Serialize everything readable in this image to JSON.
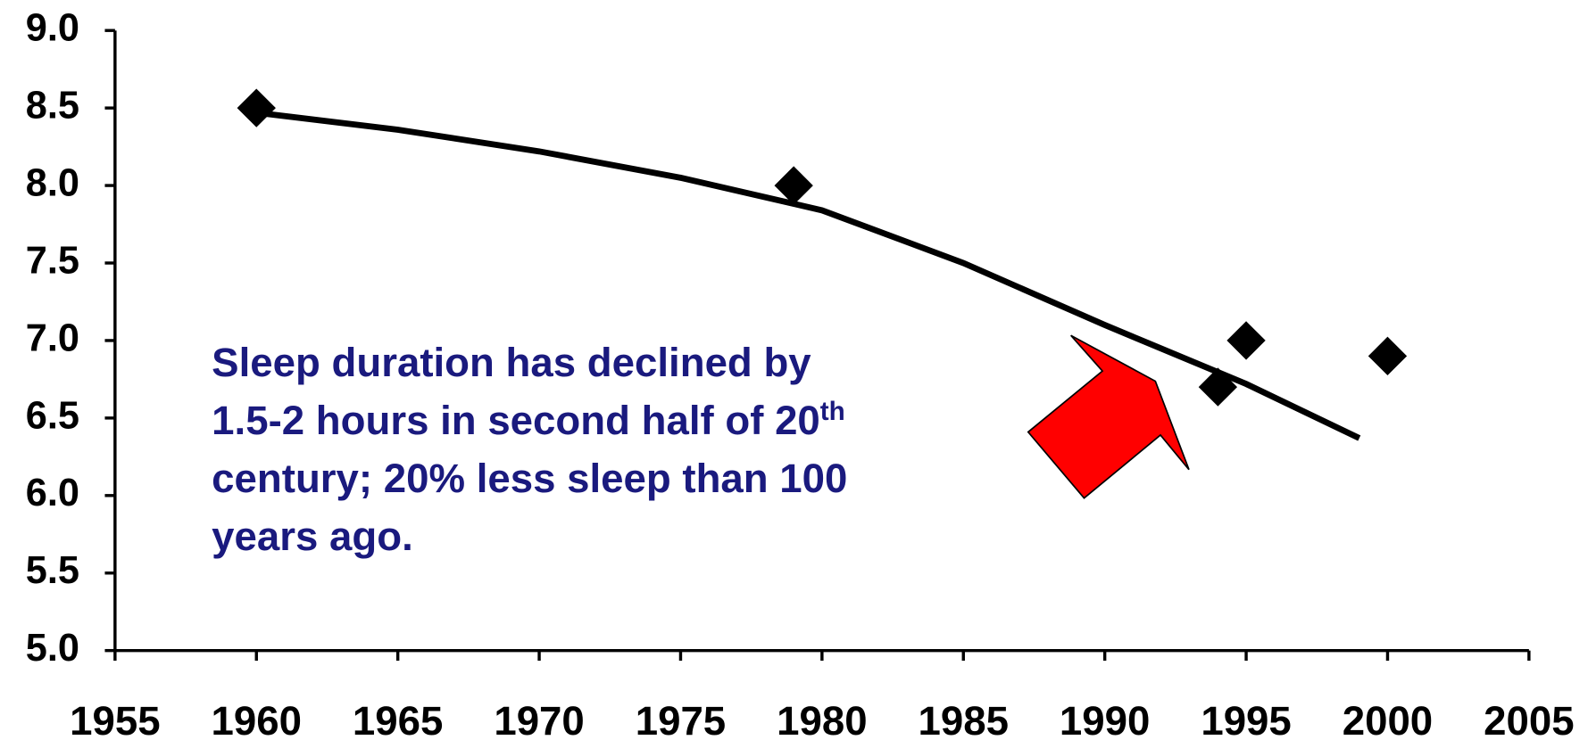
{
  "chart_data": {
    "type": "scatter",
    "x": [
      1960,
      1979,
      1994,
      1995,
      2000
    ],
    "values": [
      8.5,
      8.0,
      6.7,
      7.0,
      6.9
    ],
    "color": "#000000",
    "trendline": {
      "x": [
        1960,
        1965,
        1970,
        1975,
        1980,
        1985,
        1990,
        1995,
        1999
      ],
      "values": [
        8.47,
        8.36,
        8.22,
        8.05,
        7.84,
        7.5,
        7.1,
        6.72,
        6.37
      ],
      "color": "#000000"
    },
    "xlim": [
      1955,
      2005
    ],
    "xticks": [
      1955,
      1960,
      1965,
      1970,
      1975,
      1980,
      1985,
      1990,
      1995,
      2000,
      2005
    ],
    "ylim": [
      5,
      9
    ],
    "yticks": [
      {
        "value": 5,
        "label": "5.0"
      },
      {
        "value": 5.5,
        "label": "5.5"
      },
      {
        "value": 6,
        "label": "6.0"
      },
      {
        "value": 6.5,
        "label": "6.5"
      },
      {
        "value": 7,
        "label": "7.0"
      },
      {
        "value": 7.5,
        "label": "7.5"
      },
      {
        "value": 8,
        "label": "8.0"
      },
      {
        "value": 8.5,
        "label": "8.5"
      },
      {
        "value": 9,
        "label": "9.0"
      }
    ],
    "annotation": {
      "lines": [
        "Sleep duration has declined by",
        "1.5-2 hours in second half of 20",
        "century; 20% less sleep than 100",
        "years ago."
      ],
      "superscript": "th"
    }
  }
}
